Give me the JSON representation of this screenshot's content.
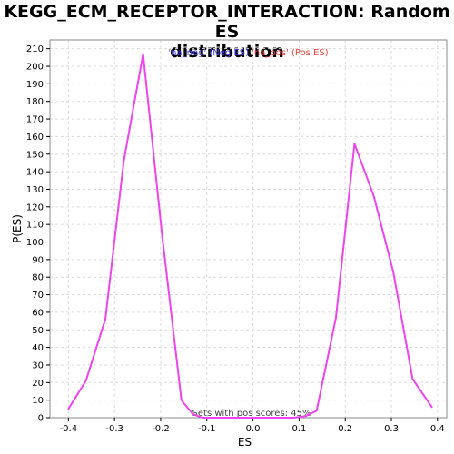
{
  "title_lines": [
    "KEGG_ECM_RECEPTOR_INTERACTION: Random ES",
    "distribution"
  ],
  "colors": {
    "line": "#ee44ee",
    "neg_legend": "#4444ee",
    "pos_legend": "#ee4444",
    "grid": "#dcdcdc",
    "axis": "#000000"
  },
  "chart_data": {
    "type": "line",
    "title": "KEGG_ECM_RECEPTOR_INTERACTION: Random ES distribution",
    "xlabel": "ES",
    "ylabel": "P(ES)",
    "xlim": [
      -0.4,
      0.4
    ],
    "ylim": [
      0,
      215
    ],
    "xticks": [
      -0.4,
      -0.3,
      -0.2,
      -0.1,
      0.0,
      0.1,
      0.2,
      0.3,
      0.4
    ],
    "xtick_labels": [
      "-0.4",
      "-0.3",
      "-0.2",
      "-0.1",
      "0.0",
      "0.1",
      "0.2",
      "0.3",
      "0.4"
    ],
    "yticks": [
      0,
      10,
      20,
      30,
      40,
      50,
      60,
      70,
      80,
      90,
      100,
      110,
      120,
      130,
      140,
      150,
      160,
      170,
      180,
      190,
      200,
      210
    ],
    "grid": true,
    "legend": {
      "position": "top-center",
      "items": [
        {
          "text": "'na_neg' (Neg ES)",
          "color": "#4444ee"
        },
        {
          "text": "'na_pos' (Pos ES)",
          "color": "#ee4444"
        }
      ]
    },
    "annotation": "Sets with pos scores: 45%",
    "series": [
      {
        "x": [
          -0.4,
          -0.362,
          -0.32,
          -0.28,
          -0.238,
          -0.197,
          -0.155,
          -0.13,
          -0.11,
          -0.09,
          -0.07,
          -0.05,
          -0.03,
          -0.01,
          0.01,
          0.03,
          0.05,
          0.07,
          0.09,
          0.115,
          0.138,
          0.18,
          0.22,
          0.262,
          0.304,
          0.346,
          0.388
        ],
        "y": [
          5,
          21,
          56,
          146,
          207,
          104,
          10,
          2,
          0,
          0,
          0,
          0,
          0,
          0,
          0,
          0,
          0,
          0,
          0,
          1,
          4,
          57,
          156,
          126,
          83,
          22,
          6
        ]
      }
    ]
  }
}
